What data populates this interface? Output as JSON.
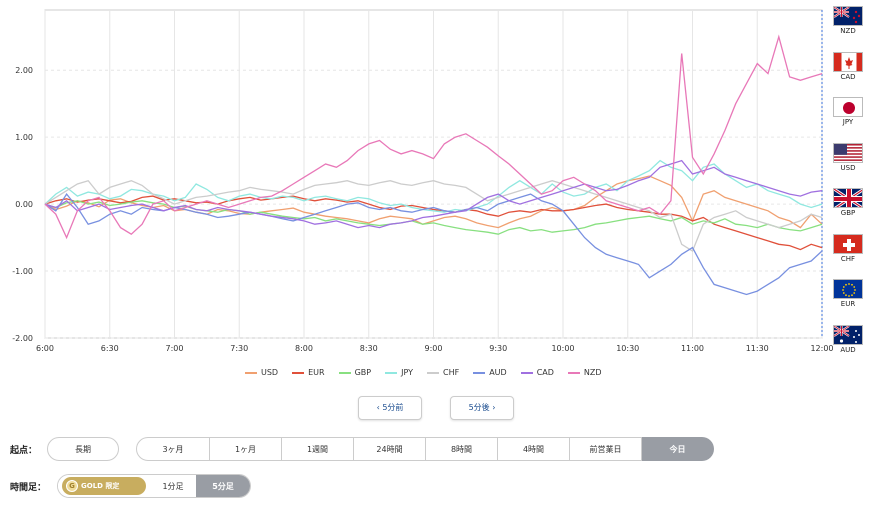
{
  "chart_data": {
    "type": "line",
    "x": [
      "6:00",
      "6:05",
      "6:10",
      "6:15",
      "6:20",
      "6:25",
      "6:30",
      "6:35",
      "6:40",
      "6:45",
      "6:50",
      "6:55",
      "7:00",
      "7:05",
      "7:10",
      "7:15",
      "7:20",
      "7:25",
      "7:30",
      "7:35",
      "7:40",
      "7:45",
      "7:50",
      "7:55",
      "8:00",
      "8:05",
      "8:10",
      "8:15",
      "8:20",
      "8:25",
      "8:30",
      "8:35",
      "8:40",
      "8:45",
      "8:50",
      "8:55",
      "9:00",
      "9:05",
      "9:10",
      "9:15",
      "9:20",
      "9:25",
      "9:30",
      "9:35",
      "9:40",
      "9:45",
      "9:50",
      "9:55",
      "10:00",
      "10:05",
      "10:10",
      "10:15",
      "10:20",
      "10:25",
      "10:30",
      "10:35",
      "10:40",
      "10:45",
      "10:50",
      "10:55",
      "11:00",
      "11:05",
      "11:10",
      "11:15",
      "11:20",
      "11:25",
      "11:30",
      "11:35",
      "11:40",
      "11:45",
      "11:50",
      "11:55",
      "12:00"
    ],
    "x_ticks": [
      "6:00",
      "6:30",
      "7:00",
      "7:30",
      "8:00",
      "8:30",
      "9:00",
      "9:30",
      "10:00",
      "10:30",
      "11:00",
      "11:30",
      "12:00"
    ],
    "y_ticks": [
      "2.00",
      "1.00",
      "0.00",
      "-1.00",
      "-2.00"
    ],
    "ylim": [
      -2.0,
      2.9
    ],
    "series": [
      {
        "name": "USD",
        "color": "#f0a070",
        "values": [
          0,
          -0.08,
          -0.03,
          0.05,
          0.02,
          -0.04,
          0.06,
          0.08,
          0.02,
          -0.02,
          -0.05,
          -0.02,
          -0.1,
          -0.08,
          -0.12,
          -0.15,
          -0.08,
          -0.1,
          -0.14,
          -0.15,
          -0.12,
          -0.1,
          -0.08,
          -0.06,
          -0.12,
          -0.15,
          -0.18,
          -0.2,
          -0.22,
          -0.25,
          -0.28,
          -0.22,
          -0.18,
          -0.2,
          -0.22,
          -0.3,
          -0.25,
          -0.2,
          -0.18,
          -0.22,
          -0.28,
          -0.32,
          -0.35,
          -0.28,
          -0.22,
          -0.18,
          -0.1,
          -0.05,
          -0.1,
          -0.08,
          -0.02,
          0.1,
          0.2,
          0.3,
          0.35,
          0.38,
          0.42,
          0.35,
          0.28,
          0.1,
          -0.25,
          0.15,
          0.2,
          0.1,
          0.05,
          0.0,
          -0.05,
          -0.1,
          -0.2,
          -0.25,
          -0.35,
          -0.15,
          -0.3
        ]
      },
      {
        "name": "EUR",
        "color": "#e0503a",
        "values": [
          0,
          0.05,
          0.08,
          0.03,
          0.06,
          0.08,
          0.05,
          0.02,
          0.04,
          0.1,
          0.12,
          0.06,
          0.08,
          0.05,
          0.02,
          0.03,
          0.0,
          0.05,
          0.08,
          0.1,
          0.06,
          0.08,
          0.1,
          0.12,
          0.08,
          0.05,
          0.08,
          0.06,
          0.03,
          0.05,
          0.0,
          -0.05,
          -0.08,
          -0.03,
          -0.02,
          -0.05,
          -0.08,
          -0.1,
          -0.12,
          -0.08,
          -0.1,
          -0.15,
          -0.18,
          -0.12,
          -0.1,
          -0.12,
          -0.08,
          -0.1,
          -0.1,
          -0.08,
          -0.05,
          -0.02,
          0.0,
          -0.05,
          -0.08,
          -0.1,
          -0.12,
          -0.15,
          -0.15,
          -0.18,
          -0.25,
          -0.2,
          -0.3,
          -0.35,
          -0.4,
          -0.45,
          -0.5,
          -0.55,
          -0.6,
          -0.62,
          -0.68,
          -0.6,
          -0.65
        ]
      },
      {
        "name": "GBP",
        "color": "#88e080",
        "values": [
          0,
          -0.05,
          0.02,
          0.05,
          0.0,
          0.03,
          -0.02,
          0.0,
          0.03,
          0.05,
          0.02,
          0.0,
          -0.05,
          -0.03,
          -0.08,
          -0.1,
          -0.12,
          -0.08,
          -0.1,
          -0.15,
          -0.12,
          -0.15,
          -0.18,
          -0.2,
          -0.22,
          -0.2,
          -0.25,
          -0.22,
          -0.25,
          -0.28,
          -0.3,
          -0.32,
          -0.3,
          -0.28,
          -0.25,
          -0.3,
          -0.28,
          -0.32,
          -0.35,
          -0.38,
          -0.4,
          -0.42,
          -0.45,
          -0.38,
          -0.35,
          -0.4,
          -0.38,
          -0.42,
          -0.4,
          -0.38,
          -0.35,
          -0.3,
          -0.28,
          -0.25,
          -0.22,
          -0.2,
          -0.18,
          -0.22,
          -0.25,
          -0.2,
          -0.3,
          -0.25,
          -0.28,
          -0.22,
          -0.3,
          -0.32,
          -0.35,
          -0.3,
          -0.35,
          -0.38,
          -0.4,
          -0.35,
          -0.3
        ]
      },
      {
        "name": "JPY",
        "color": "#90e8e0",
        "values": [
          0,
          0.15,
          0.25,
          0.12,
          0.18,
          0.15,
          0.08,
          0.12,
          0.22,
          0.2,
          0.15,
          0.12,
          0.05,
          0.1,
          0.3,
          0.22,
          0.1,
          0.05,
          0.12,
          0.15,
          0.1,
          0.08,
          0.12,
          0.1,
          0.05,
          0.1,
          0.12,
          0.08,
          0.05,
          0.1,
          0.08,
          0.02,
          -0.02,
          0.0,
          -0.05,
          -0.08,
          -0.1,
          -0.12,
          -0.08,
          -0.1,
          -0.05,
          0.0,
          0.12,
          0.25,
          0.35,
          0.25,
          0.15,
          0.3,
          0.18,
          0.12,
          0.15,
          0.25,
          0.3,
          0.2,
          0.35,
          0.42,
          0.5,
          0.65,
          0.55,
          0.5,
          0.35,
          0.55,
          0.6,
          0.45,
          0.35,
          0.25,
          0.3,
          0.2,
          0.15,
          0.1,
          0.0,
          -0.05,
          0.0
        ]
      },
      {
        "name": "CHF",
        "color": "#cccccc",
        "values": [
          0,
          0.1,
          0.2,
          0.3,
          0.35,
          0.15,
          0.25,
          0.3,
          0.35,
          0.28,
          0.15,
          0.08,
          0.0,
          0.05,
          0.1,
          0.12,
          0.15,
          0.18,
          0.2,
          0.25,
          0.22,
          0.2,
          0.18,
          0.15,
          0.22,
          0.28,
          0.3,
          0.32,
          0.35,
          0.3,
          0.28,
          0.32,
          0.35,
          0.3,
          0.28,
          0.32,
          0.35,
          0.3,
          0.28,
          0.25,
          0.15,
          0.05,
          0.1,
          0.15,
          0.2,
          0.25,
          0.3,
          0.35,
          0.3,
          0.25,
          0.2,
          0.15,
          0.1,
          0.05,
          0.0,
          -0.05,
          -0.1,
          -0.2,
          -0.15,
          -0.6,
          -0.7,
          -0.3,
          -0.2,
          -0.15,
          -0.1,
          -0.2,
          -0.25,
          -0.3,
          -0.35,
          -0.3,
          -0.25,
          -0.15,
          -0.2
        ]
      },
      {
        "name": "AUD",
        "color": "#7890e0",
        "values": [
          0,
          -0.1,
          0.15,
          -0.05,
          -0.3,
          -0.25,
          -0.15,
          -0.1,
          -0.15,
          -0.05,
          -0.08,
          -0.1,
          -0.05,
          -0.08,
          -0.12,
          -0.15,
          -0.2,
          -0.18,
          -0.15,
          -0.12,
          -0.15,
          -0.18,
          -0.22,
          -0.25,
          -0.2,
          -0.15,
          -0.1,
          -0.05,
          0.0,
          0.02,
          -0.05,
          -0.08,
          -0.05,
          -0.1,
          -0.12,
          -0.08,
          -0.05,
          -0.1,
          -0.12,
          -0.08,
          -0.05,
          -0.1,
          0.0,
          0.05,
          0.1,
          0.15,
          0.05,
          0.0,
          -0.1,
          -0.3,
          -0.5,
          -0.65,
          -0.75,
          -0.8,
          -0.85,
          -0.9,
          -1.1,
          -1.0,
          -0.9,
          -0.75,
          -0.65,
          -0.95,
          -1.2,
          -1.25,
          -1.3,
          -1.35,
          -1.3,
          -1.2,
          -1.1,
          -0.95,
          -0.9,
          -0.85,
          -0.7
        ]
      },
      {
        "name": "CAD",
        "color": "#a070e0",
        "values": [
          0,
          -0.05,
          0.05,
          -0.1,
          -0.05,
          0.0,
          -0.08,
          -0.05,
          -0.02,
          0.0,
          -0.05,
          -0.1,
          -0.05,
          -0.02,
          -0.08,
          -0.1,
          -0.05,
          -0.08,
          -0.1,
          -0.12,
          -0.15,
          -0.18,
          -0.2,
          -0.22,
          -0.25,
          -0.3,
          -0.28,
          -0.25,
          -0.3,
          -0.35,
          -0.32,
          -0.35,
          -0.3,
          -0.28,
          -0.25,
          -0.2,
          -0.18,
          -0.15,
          -0.12,
          -0.1,
          0.0,
          0.1,
          0.15,
          0.05,
          0.0,
          0.05,
          0.1,
          0.15,
          0.2,
          0.25,
          0.3,
          0.25,
          0.2,
          0.22,
          0.28,
          0.35,
          0.4,
          0.55,
          0.6,
          0.65,
          0.45,
          0.5,
          0.55,
          0.45,
          0.4,
          0.35,
          0.3,
          0.25,
          0.2,
          0.15,
          0.12,
          0.18,
          0.2
        ]
      },
      {
        "name": "NZD",
        "color": "#e878b8",
        "values": [
          0,
          -0.15,
          -0.5,
          -0.1,
          0.05,
          0.1,
          -0.1,
          -0.35,
          -0.45,
          -0.3,
          0.0,
          0.05,
          -0.1,
          -0.05,
          0.0,
          0.05,
          0.0,
          -0.05,
          0.0,
          0.05,
          0.1,
          0.12,
          0.2,
          0.3,
          0.4,
          0.5,
          0.6,
          0.55,
          0.65,
          0.8,
          0.9,
          0.95,
          0.82,
          0.75,
          0.8,
          0.75,
          0.68,
          0.9,
          1.0,
          1.05,
          0.95,
          0.85,
          0.72,
          0.6,
          0.45,
          0.3,
          0.15,
          0.2,
          0.35,
          0.4,
          0.3,
          0.2,
          0.05,
          0.0,
          -0.05,
          -0.1,
          -0.05,
          -0.15,
          0.05,
          2.25,
          0.7,
          0.45,
          0.75,
          1.1,
          1.5,
          1.8,
          2.1,
          1.95,
          2.5,
          1.9,
          1.85,
          1.9,
          1.95
        ]
      }
    ]
  },
  "flags": [
    {
      "code": "NZD",
      "label": "NZD"
    },
    {
      "code": "CAD",
      "label": "CAD"
    },
    {
      "code": "JPY",
      "label": "JPY"
    },
    {
      "code": "USD",
      "label": "USD"
    },
    {
      "code": "GBP",
      "label": "GBP"
    },
    {
      "code": "CHF",
      "label": "CHF"
    },
    {
      "code": "EUR",
      "label": "EUR"
    },
    {
      "code": "AUD",
      "label": "AUD"
    }
  ],
  "nav": {
    "prev_label": "‹ 5分前",
    "next_label": "5分後 ›"
  },
  "start_point": {
    "label": "起点：",
    "options": [
      "長期",
      "3ヶ月",
      "1ヶ月",
      "1週間",
      "24時間",
      "8時間",
      "4時間",
      "前営業日",
      "今日"
    ],
    "selected": "今日"
  },
  "timeframe": {
    "label": "時間足：",
    "gold_coin": "G",
    "gold_label": "GOLD 限定",
    "options": [
      "1分足",
      "5分足"
    ],
    "selected": "5分足"
  }
}
